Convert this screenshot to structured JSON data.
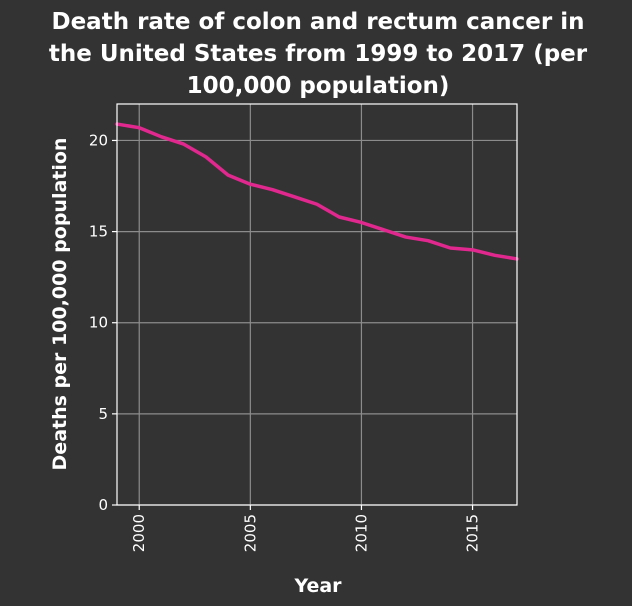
{
  "chart_data": {
    "type": "line",
    "title_lines": [
      "Death rate of colon and rectum cancer in",
      "the United States from 1999 to 2017 (per",
      "100,000 population)"
    ],
    "xlabel": "Year",
    "ylabel": "Deaths per 100,000 population",
    "x_ticks": [
      2000,
      2005,
      2010,
      2015
    ],
    "x_tick_labels": [
      "2000",
      "2005",
      "2010",
      "2015"
    ],
    "y_ticks": [
      0,
      5,
      10,
      15,
      20
    ],
    "y_tick_labels": [
      "0",
      "5",
      "10",
      "15",
      "20"
    ],
    "xlim": [
      1999,
      2017
    ],
    "ylim": [
      0,
      22
    ],
    "grid": true,
    "series": [
      {
        "name": "Death rate",
        "color": "#e0288f",
        "x": [
          1999,
          2000,
          2001,
          2002,
          2003,
          2004,
          2005,
          2006,
          2007,
          2008,
          2009,
          2010,
          2011,
          2012,
          2013,
          2014,
          2015,
          2016,
          2017
        ],
        "values": [
          20.9,
          20.7,
          20.2,
          19.8,
          19.1,
          18.1,
          17.6,
          17.3,
          16.9,
          16.5,
          15.8,
          15.5,
          15.1,
          14.7,
          14.5,
          14.1,
          14.0,
          13.7,
          13.5
        ]
      }
    ],
    "colors": {
      "background": "#333333",
      "plot_background": "#333333",
      "grid": "#8c8c8c",
      "text": "#ffffff"
    }
  }
}
